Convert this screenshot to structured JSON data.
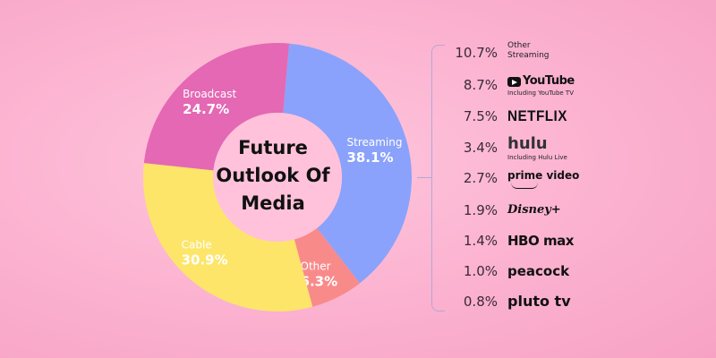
{
  "chart_data": {
    "type": "donut",
    "title": "Future Outlook Of Media",
    "series": [
      {
        "name": "Streaming",
        "value": 38.1,
        "label": "38.1%",
        "color": "#8aa2fb"
      },
      {
        "name": "Other",
        "value": 6.3,
        "label": "6.3%",
        "color": "#f98a8a"
      },
      {
        "name": "Cable",
        "value": 30.9,
        "label": "30.9%",
        "color": "#fde56a"
      },
      {
        "name": "Broadcast",
        "value": 24.7,
        "label": "24.7%",
        "color": "#e468b4"
      }
    ],
    "streaming_breakdown": [
      {
        "value": 10.7,
        "label": "10.7%",
        "service": "Other Streaming",
        "logo": "other-streaming"
      },
      {
        "value": 8.7,
        "label": "8.7%",
        "service": "YouTube",
        "sub": "Including YouTube TV",
        "logo": "youtube"
      },
      {
        "value": 7.5,
        "label": "7.5%",
        "service": "NETFLIX",
        "logo": "netflix"
      },
      {
        "value": 3.4,
        "label": "3.4%",
        "service": "hulu",
        "sub": "Including Hulu Live",
        "logo": "hulu"
      },
      {
        "value": 2.7,
        "label": "2.7%",
        "service": "prime video",
        "logo": "prime-video"
      },
      {
        "value": 1.9,
        "label": "1.9%",
        "service": "Disney+",
        "logo": "disney-plus"
      },
      {
        "value": 1.4,
        "label": "1.4%",
        "service": "HBO max",
        "logo": "hbo-max"
      },
      {
        "value": 1.0,
        "label": "1.0%",
        "service": "peacock",
        "logo": "peacock"
      },
      {
        "value": 0.8,
        "label": "0.8%",
        "service": "pluto tv",
        "logo": "pluto-tv"
      }
    ]
  },
  "title_lines": [
    "Future",
    "Outlook Of",
    "Media"
  ],
  "colors": {
    "background": "#fbb5d1",
    "bracket": "#b3a7d6",
    "center": "#ffc2da"
  }
}
